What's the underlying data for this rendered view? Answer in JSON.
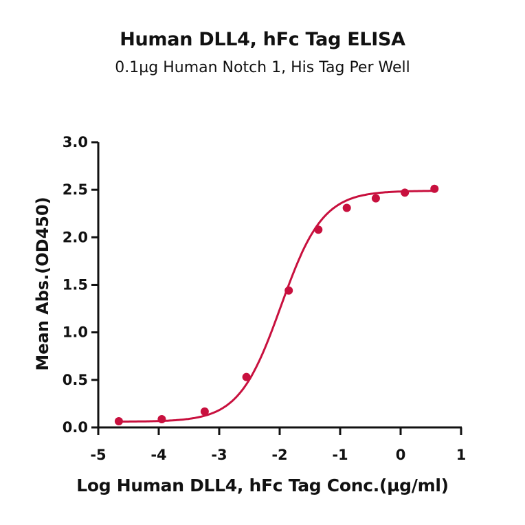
{
  "header": {
    "title": "Human DLL4, hFc Tag ELISA",
    "subtitle": "0.1µg Human Notch 1, His Tag Per Well"
  },
  "axes": {
    "xlabel": "Log Human DLL4, hFc Tag Conc.(µg/ml)",
    "ylabel": "Mean Abs.(OD450)"
  },
  "colors": {
    "series": "#c8103e",
    "axis": "#111111"
  },
  "chart_data": {
    "type": "scatter",
    "title": "Human DLL4, hFc Tag ELISA",
    "subtitle": "0.1µg Human Notch 1, His Tag Per Well",
    "xlabel": "Log Human DLL4, hFc Tag Conc.(µg/ml)",
    "ylabel": "Mean Abs.(OD450)",
    "xlim": [
      -5,
      1
    ],
    "ylim": [
      0,
      3.0
    ],
    "x_ticks": [
      -5,
      -4,
      -3,
      -2,
      -1,
      0,
      1
    ],
    "y_ticks": [
      "0.0",
      "0.5",
      "1.0",
      "1.5",
      "2.0",
      "2.5",
      "3.0"
    ],
    "grid": false,
    "legend": null,
    "fit": "4-parameter logistic curve (solid line)",
    "series": [
      {
        "name": "Human DLL4, hFc Tag",
        "x": [
          -4.66,
          -3.95,
          -3.24,
          -2.55,
          -1.85,
          -1.36,
          -0.89,
          -0.41,
          0.07,
          0.56
        ],
        "y": [
          0.065,
          0.087,
          0.167,
          0.53,
          1.44,
          2.08,
          2.31,
          2.41,
          2.47,
          2.51
        ]
      }
    ]
  }
}
